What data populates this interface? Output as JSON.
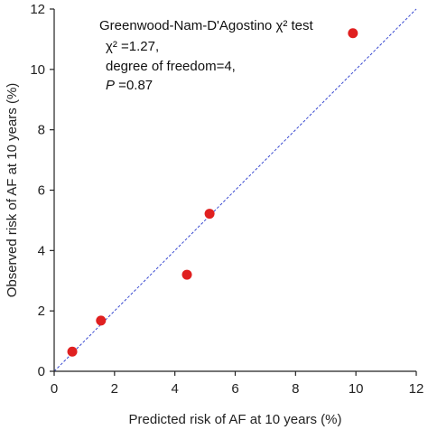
{
  "chart_data": {
    "type": "scatter",
    "xlabel": "Predicted risk of AF at 10 years (%)",
    "ylabel": "Observed risk of AF at 10 years (%)",
    "xlim": [
      0,
      12
    ],
    "ylim": [
      0,
      12
    ],
    "xticks": [
      0,
      2,
      4,
      6,
      8,
      10,
      12
    ],
    "yticks": [
      0,
      2,
      4,
      6,
      8,
      10,
      12
    ],
    "grid": false,
    "reference_line": "y = x (dashed)",
    "series": [
      {
        "color": "#e02020",
        "x": [
          0.6,
          1.55,
          4.4,
          5.15,
          9.9
        ],
        "y": [
          0.65,
          1.68,
          3.2,
          5.22,
          11.2
        ]
      }
    ],
    "annotation": {
      "title": "Greenwood-Nam-D'Agostino χ² test",
      "line1": "χ² =1.27,",
      "line2": "degree of freedom=4,",
      "line3_italic": "P",
      "line3_rest": " =0.87"
    },
    "colors": {
      "point": "#e02020",
      "reference_line": "#3b4bd1",
      "axis": "#222222"
    }
  }
}
